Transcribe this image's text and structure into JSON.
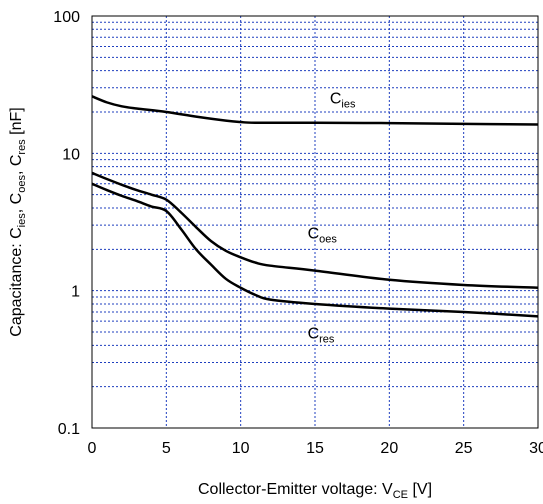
{
  "chart_data": {
    "type": "line",
    "xlabel": {
      "main": "Collector-Emitter voltage: V",
      "sub": "CE",
      "suffix": " [V]"
    },
    "ylabel": {
      "parts": [
        {
          "t": "Capacitance: C"
        },
        {
          "t": "ies",
          "sub": true
        },
        {
          "t": ", C"
        },
        {
          "t": "oes",
          "sub": true
        },
        {
          "t": ", C"
        },
        {
          "t": "res",
          "sub": true
        },
        {
          "t": " [nF]"
        }
      ]
    },
    "xlim": [
      0,
      30
    ],
    "ylim": [
      0.1,
      100
    ],
    "yscale": "log",
    "grid": true,
    "x_ticks": [
      0,
      5,
      10,
      15,
      20,
      25,
      30
    ],
    "x_tick_labels": [
      "0",
      "5",
      "10",
      "15",
      "20",
      "25",
      "30"
    ],
    "y_ticks": [
      0.1,
      1,
      10,
      100
    ],
    "y_tick_labels": [
      "0.1",
      "1",
      "10",
      "100"
    ],
    "series": [
      {
        "name": "C",
        "name_sub": "ies",
        "x": [
          0,
          1,
          2,
          3,
          5,
          7,
          9,
          10,
          11,
          15,
          20,
          25,
          30
        ],
        "y": [
          26,
          23.5,
          22,
          21.2,
          20,
          18.5,
          17.3,
          16.9,
          16.7,
          16.7,
          16.6,
          16.4,
          16.2
        ]
      },
      {
        "name": "C",
        "name_sub": "oes",
        "x": [
          0,
          1,
          2,
          3,
          4,
          5,
          6,
          7,
          8,
          9,
          10,
          11,
          12,
          15,
          20,
          25,
          30
        ],
        "y": [
          7.2,
          6.5,
          5.9,
          5.4,
          5.0,
          4.6,
          3.7,
          2.9,
          2.3,
          1.95,
          1.75,
          1.6,
          1.52,
          1.4,
          1.2,
          1.1,
          1.05
        ]
      },
      {
        "name": "C",
        "name_sub": "res",
        "x": [
          0,
          1,
          2,
          3,
          4,
          5,
          6,
          7,
          8,
          9,
          10,
          11,
          12,
          15,
          20,
          25,
          30
        ],
        "y": [
          6.0,
          5.4,
          4.9,
          4.5,
          4.1,
          3.8,
          2.8,
          2.0,
          1.55,
          1.22,
          1.05,
          0.93,
          0.86,
          0.8,
          0.74,
          0.7,
          0.65
        ]
      }
    ],
    "annotations": [
      {
        "series": 0,
        "x": 16,
        "y": 23
      },
      {
        "series": 1,
        "x": 14.5,
        "y": 2.4
      },
      {
        "series": 2,
        "x": 14.5,
        "y": 0.45
      }
    ]
  }
}
